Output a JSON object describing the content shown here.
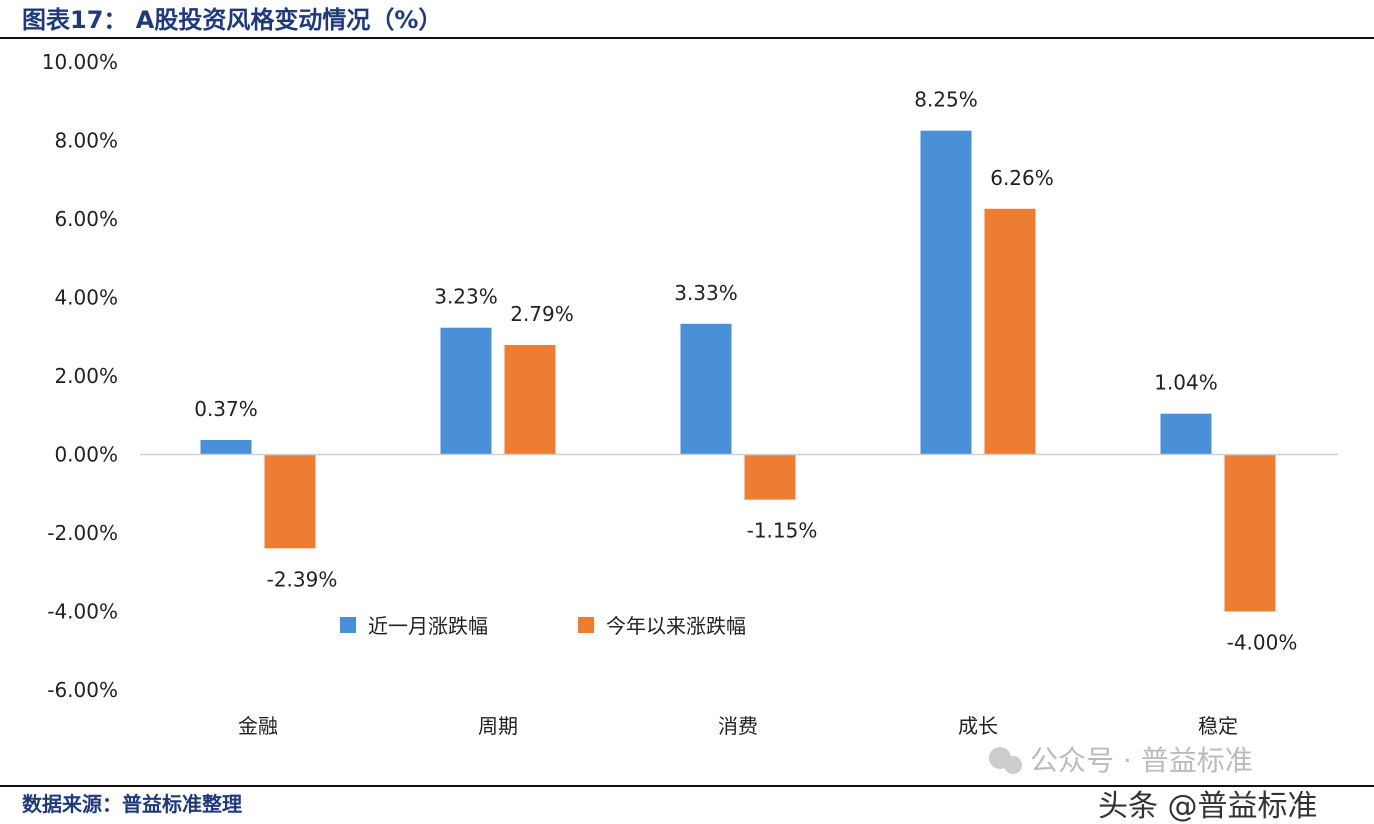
{
  "title": "图表17： A股投资风格变动情况（%）",
  "source": "数据来源：普益标准整理",
  "watermark": {
    "line1": "公众号 · 普益标准",
    "line2": "头条 @普益标准"
  },
  "chart_data": {
    "type": "bar",
    "categories": [
      "金融",
      "周期",
      "消费",
      "成长",
      "稳定"
    ],
    "series": [
      {
        "name": "近一月涨跌幅",
        "color": "#4a90d9",
        "values": [
          0.37,
          3.23,
          3.33,
          8.25,
          1.04
        ],
        "labels": [
          "0.37%",
          "3.23%",
          "3.33%",
          "8.25%",
          "1.04%"
        ]
      },
      {
        "name": "今年以来涨跌幅",
        "color": "#ed7d31",
        "values": [
          -2.39,
          2.79,
          -1.15,
          6.26,
          -4.0
        ],
        "labels": [
          "-2.39%",
          "2.79%",
          "-1.15%",
          "6.26%",
          "-4.00%"
        ]
      }
    ],
    "ylim": [
      -6,
      10
    ],
    "yticks": [
      "10.00%",
      "8.00%",
      "6.00%",
      "4.00%",
      "2.00%",
      "0.00%",
      "-2.00%",
      "-4.00%",
      "-6.00%"
    ],
    "legend": "inside-bottom-left",
    "grid": false
  }
}
